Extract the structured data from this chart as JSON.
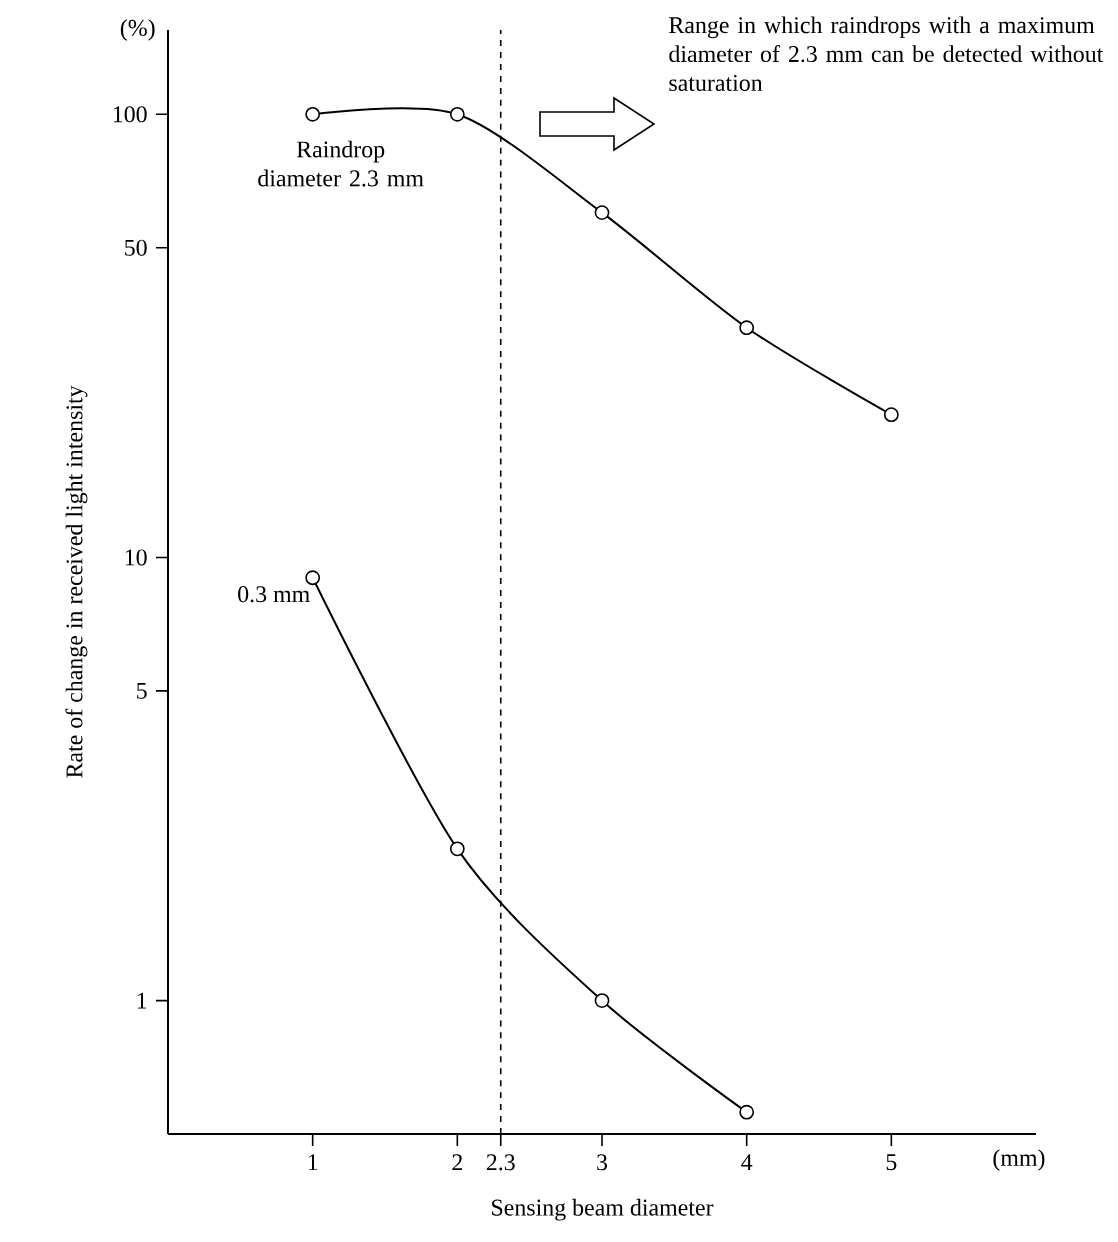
{
  "chart_data": {
    "type": "line",
    "xlabel": "Sensing beam diameter",
    "ylabel": "Rate of change in received light intensity",
    "series": [
      {
        "name": "Raindrop diameter 2.3 mm",
        "color": "#000000",
        "x": [
          1,
          2,
          3,
          4,
          5
        ],
        "values": [
          100,
          100,
          60,
          33,
          21
        ]
      },
      {
        "name": "0.3 mm",
        "color": "#000000",
        "x": [
          1,
          2,
          3,
          4
        ],
        "values": [
          9,
          2.2,
          1,
          0.56
        ]
      }
    ],
    "xlim": [
      0,
      6
    ],
    "ylim": [
      0.5,
      155
    ],
    "xticks": [
      1,
      2,
      2.3,
      3,
      4,
      5
    ],
    "yticks": [
      1,
      5,
      10,
      50,
      100
    ],
    "log": "y",
    "marker": "circle",
    "grid": false,
    "legend": false,
    "ref_lines": [
      {
        "axis": "x",
        "value": 2.3,
        "line_style": "dashed"
      }
    ],
    "annotations": [
      "(%)",
      "(mm)",
      "Range in which raindrops with a maximum diameter of 2.3 mm can be detected without saturation"
    ]
  }
}
